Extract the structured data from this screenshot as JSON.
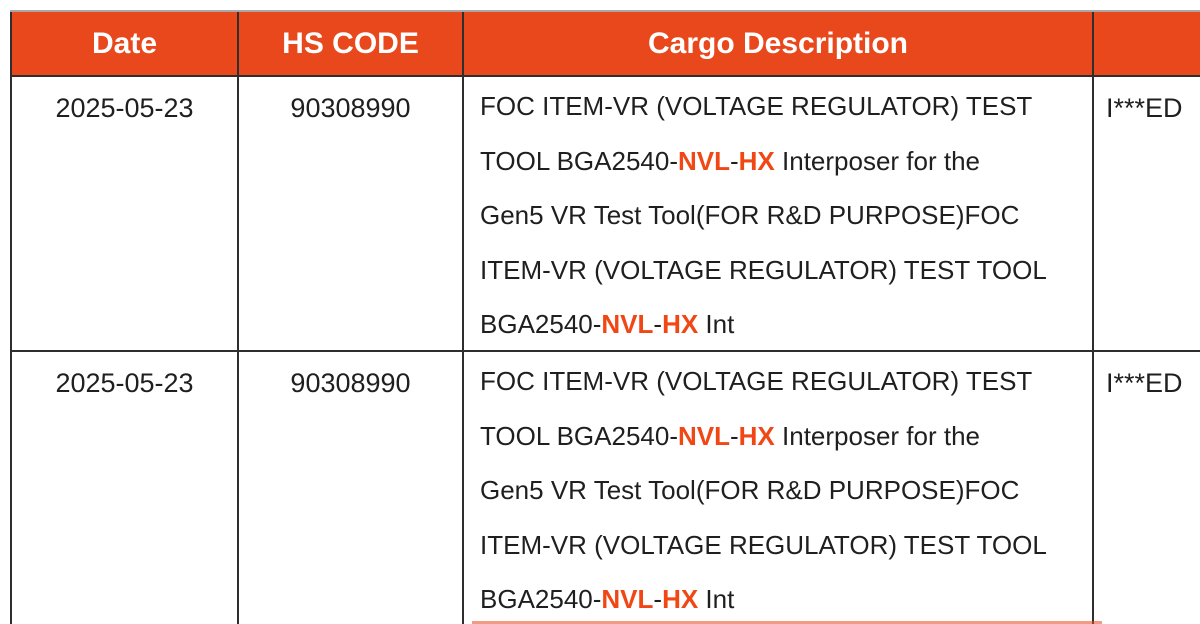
{
  "page": {
    "background": "#ffffff"
  },
  "colors": {
    "header_bg": "#e8481c",
    "header_text": "#ffffff",
    "body_text": "#1f1f1f",
    "highlight_text": "#f04715",
    "grid_border": "#2e2e2e",
    "top_border": "#a8a8a8"
  },
  "table": {
    "columns": [
      {
        "label": "Date"
      },
      {
        "label": "HS CODE"
      },
      {
        "label": "Cargo Description"
      },
      {
        "label": ""
      }
    ],
    "highlight_term": "NVL-HX",
    "rows": [
      {
        "date": "2025-05-23",
        "hs_code": "90308990",
        "cargo_description_full": "FOC ITEM-VR (VOLTAGE REGULATOR) TEST TOOL BGA2540-NVL-HX Interposer for the Gen5 VR Test Tool(FOR R&D PURPOSE)FOC ITEM-VR (VOLTAGE REGULATOR) TEST TOOL BGA2540-NVL-HX Int",
        "cargo_lines": [
          [
            {
              "t": "FOC ITEM-VR (VOLTAGE REGULATOR) TEST"
            }
          ],
          [
            {
              "t": "TOOL BGA2540-"
            },
            {
              "t": "NVL",
              "hl": true
            },
            {
              "t": "-"
            },
            {
              "t": "HX",
              "hl": true
            },
            {
              "t": " Interposer for the"
            }
          ],
          [
            {
              "t": "Gen5 VR Test Tool(FOR R&D PURPOSE)FOC"
            }
          ],
          [
            {
              "t": "ITEM-VR (VOLTAGE REGULATOR) TEST TOOL"
            }
          ],
          [
            {
              "t": "BGA2540-"
            },
            {
              "t": "NVL",
              "hl": true
            },
            {
              "t": "-"
            },
            {
              "t": "HX",
              "hl": true
            },
            {
              "t": " Int"
            }
          ]
        ],
        "masked": "I***ED"
      },
      {
        "date": "2025-05-23",
        "hs_code": "90308990",
        "cargo_description_full": "FOC ITEM-VR (VOLTAGE REGULATOR) TEST TOOL BGA2540-NVL-HX Interposer for the Gen5 VR Test Tool(FOR R&D PURPOSE)FOC ITEM-VR (VOLTAGE REGULATOR) TEST TOOL BGA2540-NVL-HX Int",
        "cargo_lines": [
          [
            {
              "t": "FOC ITEM-VR (VOLTAGE REGULATOR) TEST"
            }
          ],
          [
            {
              "t": "TOOL BGA2540-"
            },
            {
              "t": "NVL",
              "hl": true
            },
            {
              "t": "-"
            },
            {
              "t": "HX",
              "hl": true
            },
            {
              "t": " Interposer for the"
            }
          ],
          [
            {
              "t": "Gen5 VR Test Tool(FOR R&D PURPOSE)FOC"
            }
          ],
          [
            {
              "t": "ITEM-VR (VOLTAGE REGULATOR) TEST TOOL"
            }
          ],
          [
            {
              "t": "BGA2540-"
            },
            {
              "t": "NVL",
              "hl": true
            },
            {
              "t": "-"
            },
            {
              "t": "HX",
              "hl": true
            },
            {
              "t": " Int"
            }
          ]
        ],
        "masked": "I***ED"
      }
    ]
  }
}
